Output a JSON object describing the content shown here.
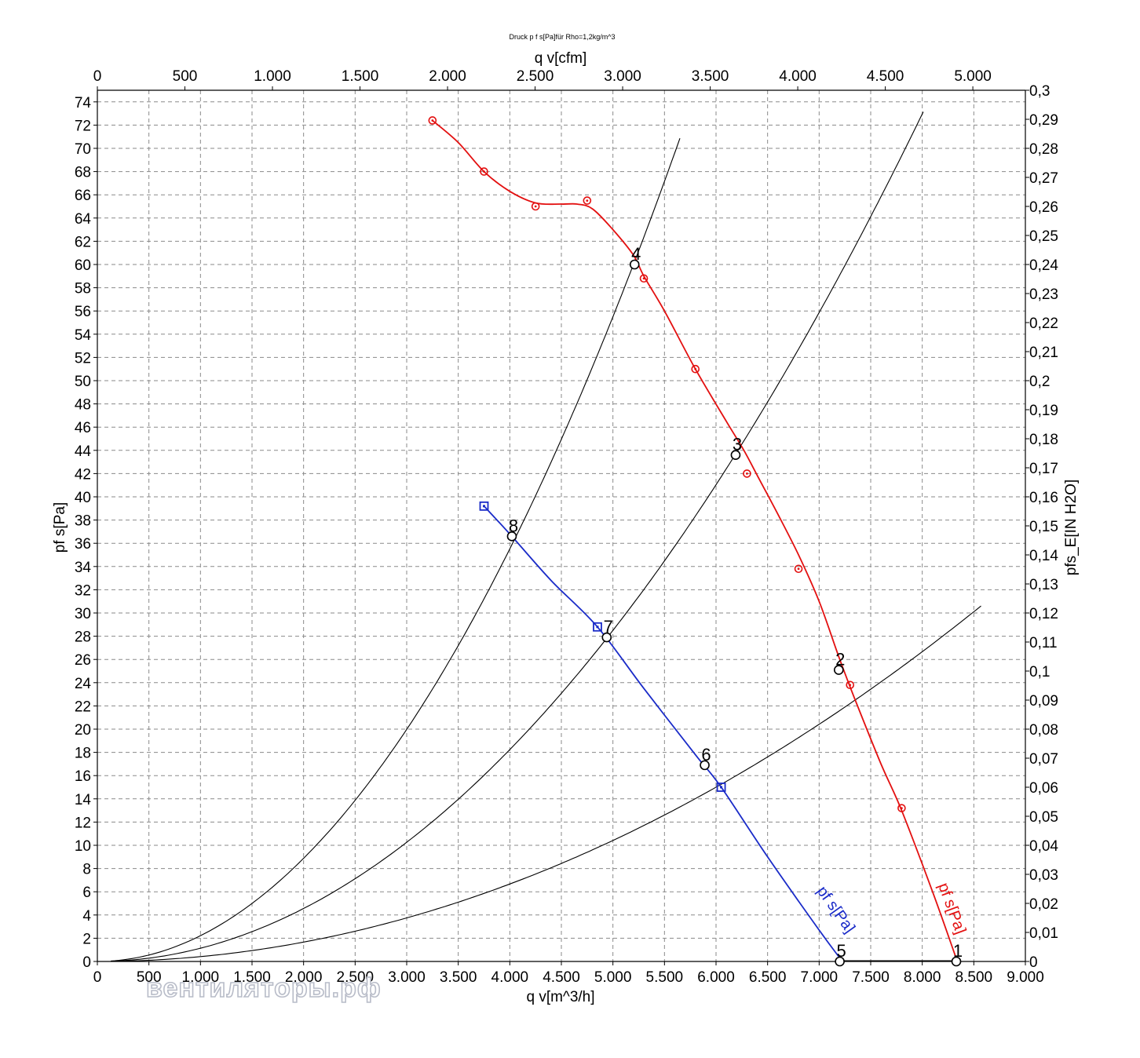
{
  "chart_data": {
    "type": "line",
    "title": "Druck p f s[Pa]für Rho=1,2kg/m^3",
    "xlabel": "q v[m^3/h]",
    "x2label": "q v[cfm]",
    "ylabel": "pf s[Pa]",
    "y2label": "pfs_E[IN H2O]",
    "xlim": [
      0,
      9000
    ],
    "ylim": [
      0,
      75
    ],
    "x2lim": [
      0,
      5300
    ],
    "y2lim": [
      0,
      0.3
    ],
    "grid": true,
    "x_ticks": [
      "0",
      "500",
      "1.000",
      "1.500",
      "2.000",
      "2.500",
      "3.000",
      "3.500",
      "4.000",
      "4.500",
      "5.000",
      "5.500",
      "6.000",
      "6.500",
      "7.000",
      "7.500",
      "8.000",
      "8.500",
      "9.000"
    ],
    "x2_ticks": [
      "0",
      "500",
      "1.000",
      "1.500",
      "2.000",
      "2.500",
      "3.000",
      "3.500",
      "4.000",
      "4.500",
      "5.000"
    ],
    "y_ticks": [
      "0",
      "2",
      "4",
      "6",
      "8",
      "10",
      "12",
      "14",
      "16",
      "18",
      "20",
      "22",
      "24",
      "26",
      "28",
      "30",
      "32",
      "34",
      "36",
      "38",
      "40",
      "42",
      "44",
      "46",
      "48",
      "50",
      "52",
      "54",
      "56",
      "58",
      "60",
      "62",
      "64",
      "66",
      "68",
      "70",
      "72",
      "74"
    ],
    "y2_ticks": [
      "0",
      "0,01",
      "0,02",
      "0,03",
      "0,04",
      "0,05",
      "0,06",
      "0,07",
      "0,08",
      "0,09",
      "0,1",
      "0,11",
      "0,12",
      "0,13",
      "0,14",
      "0,15",
      "0,16",
      "0,17",
      "0,18",
      "0,19",
      "0,2",
      "0,21",
      "0,22",
      "0,23",
      "0,24",
      "0,25",
      "0,26",
      "0,27",
      "0,28",
      "0,29",
      "0,3"
    ],
    "series": [
      {
        "name": "pf s[Pa]",
        "color": "#e31010",
        "marker": "circle-dot",
        "curve": [
          [
            3250,
            72.4
          ],
          [
            3500,
            70.5
          ],
          [
            3750,
            68.0
          ],
          [
            4000,
            66.3
          ],
          [
            4250,
            65.3
          ],
          [
            4500,
            65.2
          ],
          [
            4650,
            65.2
          ],
          [
            4800,
            64.8
          ],
          [
            5000,
            63.0
          ],
          [
            5200,
            60.8
          ],
          [
            5300,
            59.0
          ],
          [
            5500,
            56.0
          ],
          [
            5800,
            51.0
          ],
          [
            6100,
            46.5
          ],
          [
            6270,
            44.0
          ],
          [
            6420,
            41.5
          ],
          [
            6600,
            38.5
          ],
          [
            6800,
            35.0
          ],
          [
            7000,
            31.0
          ],
          [
            7200,
            26.0
          ],
          [
            7350,
            22.5
          ],
          [
            7600,
            17.0
          ],
          [
            7800,
            13.0
          ],
          [
            8100,
            6.0
          ],
          [
            8320,
            0.5
          ]
        ],
        "markers": [
          [
            3250,
            72.4
          ],
          [
            3750,
            68.0
          ],
          [
            4250,
            65.0
          ],
          [
            4750,
            65.5
          ],
          [
            5300,
            58.8
          ],
          [
            5800,
            51.0
          ],
          [
            6300,
            42.0
          ],
          [
            6800,
            33.8
          ],
          [
            7300,
            23.8
          ],
          [
            7800,
            13.2
          ]
        ],
        "label_text": "pf s[Pa]"
      },
      {
        "name": "pf s[Pa]",
        "color": "#1a2bc8",
        "marker": "square",
        "curve": [
          [
            3750,
            39.2
          ],
          [
            4000,
            36.8
          ],
          [
            4400,
            32.8
          ],
          [
            4850,
            28.8
          ],
          [
            5300,
            23.5
          ],
          [
            5800,
            17.8
          ],
          [
            6050,
            15.0
          ],
          [
            6500,
            9.0
          ],
          [
            7000,
            2.7
          ],
          [
            7200,
            0.3
          ]
        ],
        "markers": [
          [
            3750,
            39.2
          ],
          [
            4850,
            28.8
          ],
          [
            6050,
            15.0
          ]
        ],
        "label_text": "pf s[Pa]"
      }
    ],
    "system_curves": [
      {
        "k": 4.167e-07,
        "x_end": 8600
      },
      {
        "k": 1.14e-06,
        "x_end": 8030
      },
      {
        "k": 2.22e-06,
        "x_end": 5660
      }
    ],
    "operating_points": [
      {
        "label": "1",
        "x": 8330,
        "y": 0
      },
      {
        "label": "2",
        "x": 7190,
        "y": 25.1
      },
      {
        "label": "3",
        "x": 6190,
        "y": 43.6
      },
      {
        "label": "4",
        "x": 5210,
        "y": 60.0
      },
      {
        "label": "5",
        "x": 7200,
        "y": 0
      },
      {
        "label": "6",
        "x": 5890,
        "y": 16.9
      },
      {
        "label": "7",
        "x": 4940,
        "y": 27.9
      },
      {
        "label": "8",
        "x": 4020,
        "y": 36.6
      }
    ]
  },
  "watermark": "вентиляторы.рф"
}
